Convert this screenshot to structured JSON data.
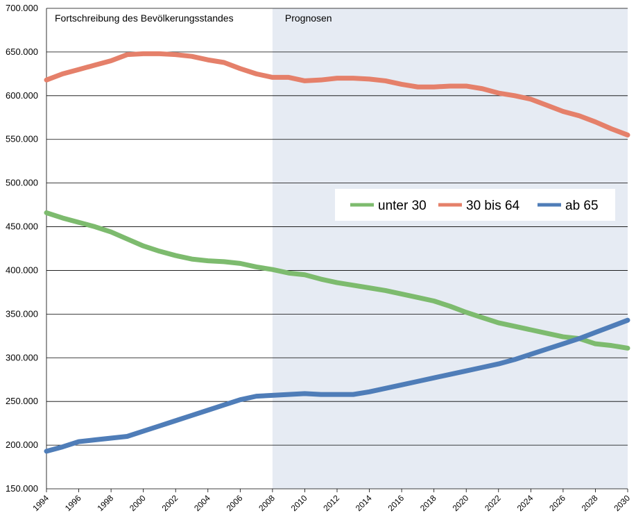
{
  "chart_data": {
    "type": "line",
    "x": [
      1994,
      1995,
      1996,
      1997,
      1998,
      1999,
      2000,
      2001,
      2002,
      2003,
      2004,
      2005,
      2006,
      2007,
      2008,
      2009,
      2010,
      2011,
      2012,
      2013,
      2014,
      2015,
      2016,
      2017,
      2018,
      2019,
      2020,
      2021,
      2022,
      2023,
      2024,
      2025,
      2026,
      2027,
      2028,
      2029,
      2030
    ],
    "series": [
      {
        "name": "unter 30",
        "color": "#7dbb6e",
        "values": [
          466000,
          460000,
          455000,
          450000,
          444000,
          436000,
          428000,
          422000,
          417000,
          413000,
          411000,
          410000,
          408000,
          404000,
          401000,
          397000,
          395000,
          390000,
          386000,
          383000,
          380000,
          377000,
          373000,
          369000,
          365000,
          359000,
          352000,
          346000,
          340000,
          336000,
          332000,
          328000,
          324000,
          322000,
          316000,
          314000,
          311000
        ]
      },
      {
        "name": "30 bis 64",
        "color": "#e5806a",
        "values": [
          618000,
          625000,
          630000,
          635000,
          640000,
          647000,
          648000,
          648000,
          647000,
          645000,
          641000,
          638000,
          631000,
          625000,
          621000,
          621000,
          617000,
          618000,
          620000,
          620000,
          619000,
          617000,
          613000,
          610000,
          610000,
          611000,
          611000,
          608000,
          603000,
          600000,
          596000,
          589000,
          582000,
          577000,
          570000,
          562000,
          555000
        ]
      },
      {
        "name": "ab 65",
        "color": "#4f7db8",
        "values": [
          193000,
          198000,
          204000,
          206000,
          208000,
          210000,
          216000,
          222000,
          228000,
          234000,
          240000,
          246000,
          252000,
          256000,
          257000,
          258000,
          259000,
          258000,
          258000,
          258000,
          261000,
          265000,
          269000,
          273000,
          277000,
          281000,
          285000,
          289000,
          293000,
          298000,
          304000,
          310000,
          316000,
          322000,
          329000,
          336000,
          343000
        ]
      }
    ],
    "xlim": [
      1994,
      2030
    ],
    "xticks": [
      1994,
      1996,
      1998,
      2000,
      2002,
      2004,
      2006,
      2008,
      2010,
      2012,
      2014,
      2016,
      2018,
      2020,
      2022,
      2024,
      2026,
      2028,
      2030
    ],
    "ylim": [
      150000,
      700000
    ],
    "yticks": [
      {
        "value": 150000,
        "label": "150.000"
      },
      {
        "value": 200000,
        "label": "200.000"
      },
      {
        "value": 250000,
        "label": "250.000"
      },
      {
        "value": 300000,
        "label": "300.000"
      },
      {
        "value": 350000,
        "label": "350.000"
      },
      {
        "value": 400000,
        "label": "400.000"
      },
      {
        "value": 450000,
        "label": "450.000"
      },
      {
        "value": 500000,
        "label": "500.000"
      },
      {
        "value": 550000,
        "label": "550.000"
      },
      {
        "value": 600000,
        "label": "600.000"
      },
      {
        "value": 650000,
        "label": "650.000"
      },
      {
        "value": 700000,
        "label": "700.000"
      }
    ],
    "grid": true,
    "period_labels": {
      "history": "Fortschreibung des Bevölkerungsstandes",
      "forecast": "Prognosen"
    },
    "forecast_from": 2008,
    "forecast_shade": "#e6ebf3"
  }
}
